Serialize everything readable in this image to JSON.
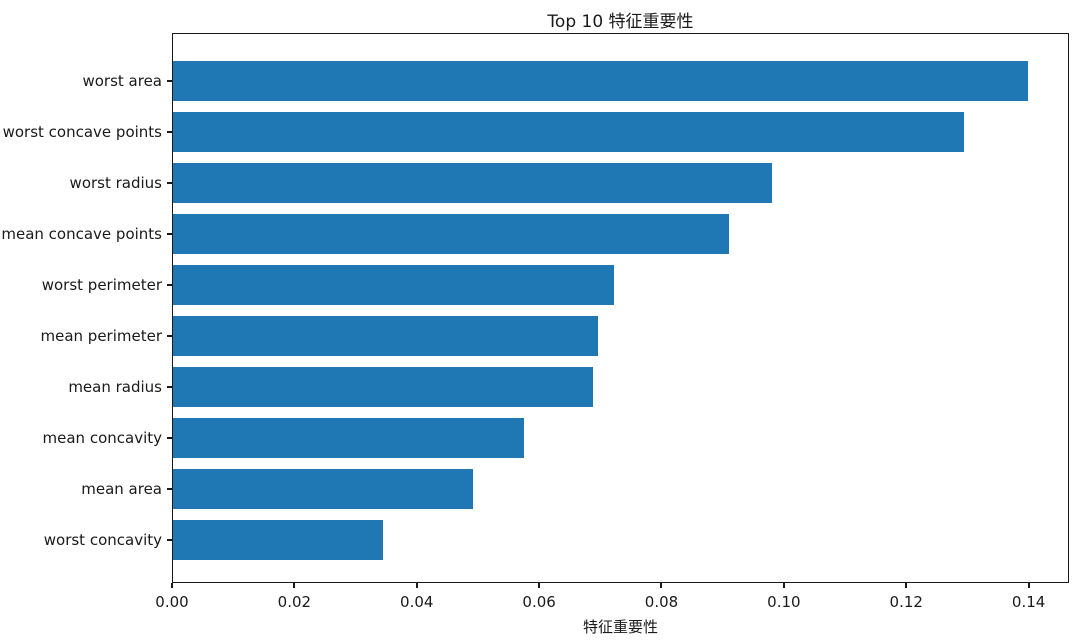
{
  "chart_data": {
    "type": "bar",
    "orientation": "horizontal",
    "title": "Top 10 特征重要性",
    "xlabel": "特征重要性",
    "ylabel": "",
    "categories": [
      "worst area",
      "worst concave points",
      "worst radius",
      "mean concave points",
      "worst perimeter",
      "mean perimeter",
      "mean radius",
      "mean concavity",
      "mean area",
      "worst concavity"
    ],
    "values": [
      0.1397,
      0.1293,
      0.0979,
      0.0908,
      0.072,
      0.0694,
      0.0687,
      0.0573,
      0.049,
      0.0343
    ],
    "xticks": [
      "0.00",
      "0.02",
      "0.04",
      "0.06",
      "0.08",
      "0.10",
      "0.12",
      "0.14"
    ],
    "xlim": [
      0,
      0.1466
    ],
    "bar_color": "#1f77b4",
    "axis_color": "#1a1a1a",
    "grid": false,
    "legend": null
  }
}
